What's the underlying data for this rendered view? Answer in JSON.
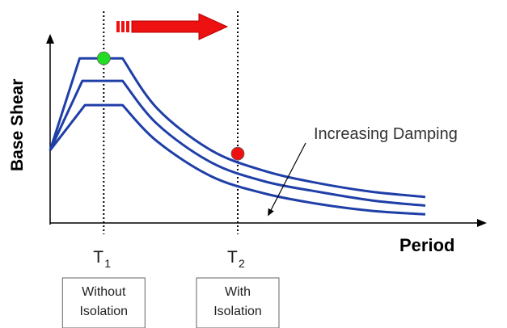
{
  "chart_data": {
    "type": "line",
    "title": "",
    "xlabel": "Period",
    "ylabel": "Base Shear",
    "ticks": [
      {
        "id": "t1",
        "main": "T",
        "sub": "1",
        "x": 1.0
      },
      {
        "id": "t2",
        "main": "T",
        "sub": "2",
        "x": 3.5
      }
    ],
    "period_boxes": [
      {
        "id": "without",
        "lines": [
          "Without",
          "Isolation"
        ],
        "tick": "t1"
      },
      {
        "id": "with",
        "lines": [
          "With",
          "Isolation"
        ],
        "tick": "t2"
      }
    ],
    "series": [
      {
        "plateau": 0.95,
        "x": [
          0,
          0.55,
          1.35,
          2.0,
          3.0,
          4.0,
          5.0,
          6.0,
          7.0
        ],
        "y": [
          0.42,
          0.95,
          0.95,
          0.66,
          0.42,
          0.3,
          0.23,
          0.18,
          0.15
        ]
      },
      {
        "plateau": 0.82,
        "x": [
          0,
          0.6,
          1.35,
          2.0,
          3.0,
          4.0,
          5.0,
          6.0,
          7.0
        ],
        "y": [
          0.42,
          0.82,
          0.82,
          0.57,
          0.35,
          0.24,
          0.18,
          0.13,
          0.1
        ]
      },
      {
        "plateau": 0.68,
        "x": [
          0,
          0.65,
          1.35,
          2.0,
          3.0,
          4.0,
          5.0,
          6.0,
          7.0
        ],
        "y": [
          0.42,
          0.68,
          0.68,
          0.47,
          0.27,
          0.17,
          0.11,
          0.07,
          0.05
        ]
      }
    ],
    "points": [
      {
        "name": "without-isolation",
        "x": 1.0,
        "y": 0.95,
        "color": "#22dd22"
      },
      {
        "name": "with-isolation",
        "x": 3.5,
        "y": 0.4,
        "color": "#ee1111"
      }
    ],
    "annotation": {
      "text": "Increasing Damping"
    },
    "series_color": "#1f3fa8",
    "shift_arrow_color": "#ee1111",
    "xlim": [
      0,
      7
    ],
    "ylim": [
      0,
      1.1
    ],
    "grid": false
  }
}
